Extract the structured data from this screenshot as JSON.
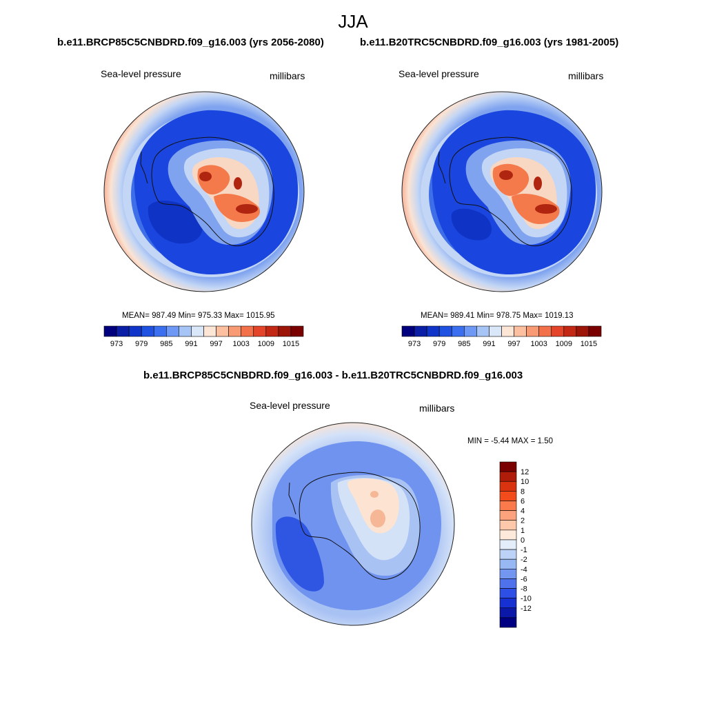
{
  "figure": {
    "title": "JJA",
    "top_left_title": "b.e11.BRCP85C5CNBDRD.f09_g16.003 (yrs 2056-2080)",
    "top_right_title": "b.e11.B20TRC5CNBDRD.f09_g16.003 (yrs 1981-2005)",
    "diff_title": "b.e11.BRCP85C5CNBDRD.f09_g16.003 - b.e11.B20TRC5CNBDRD.f09_g16.003"
  },
  "panels": {
    "future": {
      "variable": "Sea-level pressure",
      "units": "millibars",
      "stats": "MEAN= 987.49  Min= 975.33  Max= 1015.95"
    },
    "historical": {
      "variable": "Sea-level pressure",
      "units": "millibars",
      "stats": "MEAN= 989.41  Min= 978.75  Max= 1019.13"
    },
    "difference": {
      "variable": "Sea-level pressure",
      "units": "millibars",
      "stats": "MIN =  -5.44 MAX =   1.50"
    }
  },
  "colorbars": {
    "abs_colors": [
      "#00007f",
      "#0a1fa6",
      "#1235c9",
      "#1f52e0",
      "#3b6ff0",
      "#6d98f5",
      "#a7c4f7",
      "#d9e7f8",
      "#fde6d6",
      "#fcc0a0",
      "#f89a74",
      "#f2704a",
      "#e4452a",
      "#c22814",
      "#9c1508",
      "#7a0000"
    ],
    "abs_ticks": [
      "973",
      "979",
      "985",
      "991",
      "997",
      "1003",
      "1009",
      "1015"
    ],
    "diff_colors": [
      "#7a0000",
      "#b01c0a",
      "#d9330f",
      "#f24c1c",
      "#fb7a4c",
      "#fca37e",
      "#fdc9aa",
      "#fdeadb",
      "#e3eefa",
      "#bcd3f7",
      "#98b8f4",
      "#7396f0",
      "#4f72ec",
      "#2d4fe6",
      "#1630d2",
      "#0b18a8",
      "#000082"
    ],
    "diff_ticks": [
      "12",
      "10",
      "8",
      "6",
      "4",
      "2",
      "1",
      "0",
      "-1",
      "-2",
      "-4",
      "-6",
      "-8",
      "-10",
      "-12"
    ]
  },
  "map_palette": {
    "deep_blue": "#1a46df",
    "mid_blue": "#3f6fe8",
    "light_blue": "#7fa3ef",
    "pale_blue": "#c3d6f5",
    "pale_orange": "#f9d8c3",
    "orange": "#f47a4b",
    "red": "#e0442a",
    "dark_red": "#b02510",
    "diff_deep_blue": "#2f56e3",
    "diff_blue": "#6f93ee",
    "diff_light_blue": "#a9c2f4",
    "diff_pale_blue": "#d4e2f8",
    "diff_pale_orange": "#fce3d2",
    "diff_orange": "#f6b796"
  }
}
